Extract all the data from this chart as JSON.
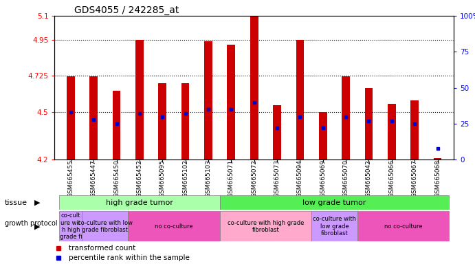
{
  "title": "GDS4055 / 242285_at",
  "samples": [
    "GSM665455",
    "GSM665447",
    "GSM665450",
    "GSM665452",
    "GSM665095",
    "GSM665102",
    "GSM665103",
    "GSM665071",
    "GSM665072",
    "GSM665073",
    "GSM665094",
    "GSM665069",
    "GSM665070",
    "GSM665042",
    "GSM665066",
    "GSM665067",
    "GSM665068"
  ],
  "transformed_count": [
    4.72,
    4.72,
    4.63,
    4.95,
    4.68,
    4.68,
    4.94,
    4.92,
    5.1,
    4.54,
    4.95,
    4.5,
    4.72,
    4.65,
    4.55,
    4.57,
    4.21
  ],
  "percentile_rank": [
    33,
    28,
    25,
    32,
    30,
    32,
    35,
    35,
    40,
    22,
    30,
    22,
    30,
    27,
    27,
    25,
    8
  ],
  "ylim_left": [
    4.2,
    5.1
  ],
  "ylim_right": [
    0,
    100
  ],
  "yticks_left": [
    4.2,
    4.5,
    4.725,
    4.95,
    5.1
  ],
  "ytick_labels_left": [
    "4.2",
    "4.5",
    "4.725",
    "4.95",
    "5.1"
  ],
  "yticks_right": [
    0,
    25,
    50,
    75,
    100
  ],
  "ytick_labels_right": [
    "0",
    "25",
    "50",
    "75",
    "100%"
  ],
  "bar_color": "#cc0000",
  "dot_color": "#0000cc",
  "bar_bottom": 4.2,
  "tissue_groups": [
    {
      "label": "high grade tumor",
      "start": 0,
      "end": 7,
      "color": "#aaffaa"
    },
    {
      "label": "low grade tumor",
      "start": 7,
      "end": 17,
      "color": "#55ee55"
    }
  ],
  "growth_protocol_groups": [
    {
      "label": "co-cult\nure wit\nh high\ngrade fi",
      "start": 0,
      "end": 1,
      "color": "#cc99ff"
    },
    {
      "label": "co-culture with low\ngrade fibroblast",
      "start": 1,
      "end": 3,
      "color": "#cc99ff"
    },
    {
      "label": "no co-culture",
      "start": 3,
      "end": 7,
      "color": "#ee55bb"
    },
    {
      "label": "co-culture with high grade\nfibroblast",
      "start": 7,
      "end": 11,
      "color": "#ffaacc"
    },
    {
      "label": "co-culture with\nlow grade\nfibroblast",
      "start": 11,
      "end": 13,
      "color": "#cc99ff"
    },
    {
      "label": "no co-culture",
      "start": 13,
      "end": 17,
      "color": "#ee55bb"
    }
  ],
  "legend_red": "transformed count",
  "legend_blue": "percentile rank within the sample",
  "bg_color": "#ffffff"
}
